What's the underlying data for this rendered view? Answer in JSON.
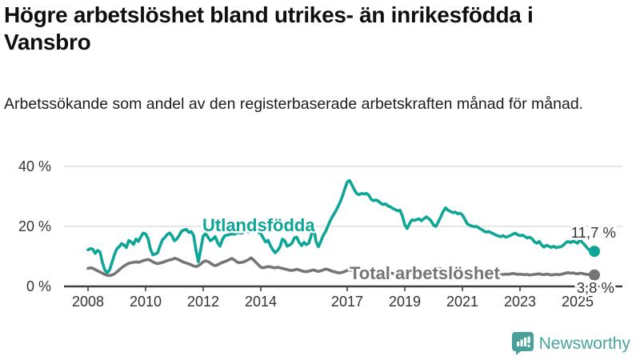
{
  "header": {
    "title": "Högre arbetslöshet bland utrikes- än inrikesfödda i Vansbro",
    "subtitle": "Arbetssökande som andel av den registerbaserade arbetskraften månad för månad."
  },
  "footer": {
    "brand": "Newsworthy",
    "brand_color": "#4aa39d"
  },
  "chart_data": {
    "type": "line",
    "title": "Högre arbetslöshet bland utrikes- än inrikesfödda i Vansbro",
    "subtitle": "Arbetssökande som andel av den registerbaserade arbetskraften månad för månad.",
    "unit": "%",
    "frequency": "monthly",
    "x_start": "2008-01",
    "x_end": "2025-08",
    "ylim": [
      0,
      40
    ],
    "grid": "horizontal",
    "legend_position": "inline-labels",
    "y_ticks": [
      {
        "label": "0 %",
        "value": 0
      },
      {
        "label": "20 %",
        "value": 20
      },
      {
        "label": "40 %",
        "value": 40
      }
    ],
    "x_ticks": [
      "2008",
      "2010",
      "2012",
      "2014",
      "2017",
      "2019",
      "2021",
      "2023",
      "2025"
    ],
    "series": [
      {
        "name": "Utlandsfödda",
        "color": "#0da595",
        "end_label": "11,7 %",
        "end_value": 11.7,
        "values": [
          12.2,
          12.6,
          12.4,
          11.0,
          12.0,
          11.5,
          8.0,
          5.5,
          4.5,
          5.5,
          8.0,
          10.5,
          12.5,
          13.2,
          14.3,
          13.8,
          13.0,
          15.3,
          14.8,
          14.0,
          15.8,
          15.0,
          16.5,
          17.8,
          17.5,
          16.0,
          12.5,
          10.5,
          10.8,
          11.2,
          13.5,
          15.5,
          16.3,
          17.3,
          17.8,
          16.8,
          15.2,
          15.8,
          17.0,
          18.4,
          18.8,
          19.0,
          18.0,
          18.3,
          17.0,
          12.0,
          8.2,
          12.5,
          16.8,
          17.6,
          16.4,
          15.2,
          15.8,
          16.6,
          14.6,
          13.4,
          15.6,
          16.9,
          17.1,
          17.3,
          17.5,
          17.4,
          17.8,
          18.0,
          17.7,
          18.2,
          18.4,
          18.1,
          18.5,
          18.8,
          18.4,
          18.0,
          17.6,
          16.2,
          14.8,
          15.4,
          13.6,
          12.2,
          11.2,
          12.0,
          13.2,
          15.8,
          15.2,
          13.4,
          13.8,
          14.4,
          16.2,
          16.4,
          14.6,
          13.6,
          14.7,
          13.9,
          14.4,
          17.0,
          19.8,
          15.0,
          13.2,
          15.0,
          17.0,
          18.3,
          20.2,
          22.0,
          23.5,
          24.8,
          26.3,
          28.0,
          30.0,
          32.5,
          34.8,
          35.3,
          33.8,
          32.2,
          30.9,
          30.6,
          31.0,
          30.8,
          31.0,
          30.4,
          29.0,
          28.6,
          28.8,
          28.4,
          27.7,
          27.3,
          27.5,
          26.8,
          26.5,
          26.0,
          25.6,
          25.2,
          25.4,
          23.5,
          20.5,
          19.3,
          21.0,
          22.2,
          22.0,
          22.3,
          22.5,
          21.9,
          22.6,
          23.2,
          22.6,
          21.8,
          20.4,
          20.0,
          21.6,
          23.2,
          25.0,
          26.2,
          25.4,
          25.0,
          24.6,
          24.8,
          24.2,
          24.4,
          23.8,
          22.4,
          20.9,
          20.4,
          20.1,
          19.9,
          20.0,
          19.4,
          19.0,
          18.4,
          18.1,
          18.3,
          17.9,
          17.5,
          17.1,
          16.8,
          16.6,
          16.9,
          16.4,
          16.6,
          17.0,
          17.4,
          17.8,
          17.2,
          16.9,
          17.1,
          16.7,
          16.1,
          16.4,
          15.9,
          14.9,
          14.4,
          15.0,
          13.8,
          13.1,
          13.7,
          13.4,
          13.0,
          13.4,
          12.9,
          13.1,
          13.2,
          13.7,
          14.5,
          15.0,
          14.6,
          15.1,
          14.8,
          14.4,
          15.5,
          14.7,
          13.8,
          12.8,
          12.0,
          11.2,
          11.7
        ]
      },
      {
        "name": "Total arbetslöshet",
        "color": "#757575",
        "end_label": "3,8 %",
        "end_value": 3.8,
        "values": [
          6.0,
          6.2,
          6.0,
          5.6,
          5.2,
          4.8,
          4.4,
          4.0,
          3.7,
          3.6,
          3.8,
          4.2,
          4.8,
          5.5,
          6.2,
          6.8,
          7.3,
          7.7,
          7.9,
          8.0,
          8.2,
          8.0,
          8.3,
          8.6,
          8.8,
          9.0,
          8.7,
          8.2,
          7.8,
          7.6,
          7.8,
          8.0,
          8.3,
          8.6,
          8.8,
          9.0,
          9.4,
          9.2,
          8.8,
          8.4,
          8.0,
          7.8,
          7.5,
          7.2,
          6.8,
          6.6,
          6.9,
          7.5,
          8.2,
          8.5,
          8.3,
          7.8,
          7.2,
          6.9,
          7.2,
          7.6,
          8.0,
          8.3,
          8.6,
          9.0,
          9.3,
          8.8,
          8.2,
          7.9,
          8.0,
          8.2,
          8.6,
          9.0,
          9.5,
          8.8,
          8.0,
          7.2,
          6.4,
          6.2,
          6.4,
          6.6,
          6.5,
          6.3,
          6.2,
          6.4,
          6.2,
          6.0,
          5.8,
          5.6,
          5.4,
          5.3,
          5.5,
          5.7,
          5.5,
          5.2,
          5.0,
          4.9,
          5.1,
          5.3,
          5.5,
          5.2,
          5.0,
          5.2,
          5.5,
          5.8,
          5.6,
          5.3,
          5.0,
          4.8,
          4.6,
          4.5,
          4.7,
          5.0,
          5.3,
          5.5,
          5.3,
          5.0,
          4.8,
          4.7,
          4.9,
          5.1,
          5.3,
          5.1,
          4.9,
          4.7,
          4.6,
          4.5,
          4.4,
          4.6,
          4.8,
          4.7,
          4.5,
          4.3,
          4.2,
          4.4,
          4.6,
          4.5,
          4.3,
          4.2,
          4.4,
          4.6,
          4.8,
          4.7,
          4.5,
          4.4,
          4.6,
          4.8,
          5.0,
          5.2,
          5.5,
          5.8,
          6.0,
          5.9,
          5.7,
          5.6,
          5.4,
          5.3,
          5.2,
          5.3,
          5.4,
          5.2,
          5.0,
          4.8,
          4.6,
          4.4,
          4.3,
          4.2,
          4.3,
          4.4,
          4.2,
          4.0,
          3.9,
          4.0,
          4.1,
          4.0,
          3.9,
          3.8,
          3.9,
          4.0,
          4.1,
          4.0,
          4.2,
          4.3,
          4.2,
          4.0,
          4.1,
          4.0,
          3.9,
          4.0,
          3.8,
          3.9,
          4.0,
          4.1,
          4.2,
          4.0,
          3.9,
          4.1,
          4.0,
          3.8,
          3.9,
          4.0,
          3.9,
          4.0,
          4.2,
          4.4,
          4.6,
          4.4,
          4.5,
          4.3,
          4.2,
          4.4,
          4.3,
          4.1,
          4.0,
          3.9,
          3.8,
          3.8
        ]
      }
    ]
  }
}
